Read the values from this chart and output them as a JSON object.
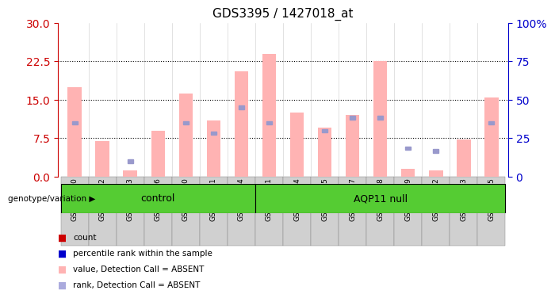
{
  "title": "GDS3395 / 1427018_at",
  "samples": [
    "GSM267980",
    "GSM267982",
    "GSM267983",
    "GSM267986",
    "GSM267990",
    "GSM267991",
    "GSM267994",
    "GSM267981",
    "GSM267984",
    "GSM267985",
    "GSM267987",
    "GSM267988",
    "GSM267989",
    "GSM267992",
    "GSM267993",
    "GSM267995"
  ],
  "pink_values": [
    17.5,
    7.0,
    1.2,
    9.0,
    16.2,
    11.0,
    20.5,
    24.0,
    12.5,
    9.5,
    12.0,
    22.5,
    1.5,
    1.2,
    7.2,
    15.5
  ],
  "blue_ranks_left": [
    10.5,
    null,
    3.0,
    null,
    10.5,
    8.5,
    13.5,
    10.5,
    null,
    9.0,
    11.5,
    11.5,
    5.5,
    5.0,
    null,
    10.5
  ],
  "n_control": 7,
  "n_aqp11": 9,
  "ylim_left": [
    0,
    30
  ],
  "ylim_right": [
    0,
    100
  ],
  "yticks_left": [
    0,
    7.5,
    15,
    22.5,
    30
  ],
  "yticks_right": [
    0,
    25,
    50,
    75,
    100
  ],
  "ytick_labels_right": [
    "0",
    "25",
    "50",
    "75",
    "100%"
  ],
  "left_color": "#cc0000",
  "right_color": "#0000cc",
  "bar_color_pink": "#ffb3b3",
  "bar_color_blue": "#9999cc",
  "control_label": "control",
  "aqp11_label": "AQP11 null",
  "group_bg_color": "#55cc33",
  "group_label": "genotype/variation",
  "legend_colors": [
    "#cc0000",
    "#0000cc",
    "#ffb3b3",
    "#aaaadd"
  ],
  "legend_labels": [
    "count",
    "percentile rank within the sample",
    "value, Detection Call = ABSENT",
    "rank, Detection Call = ABSENT"
  ],
  "hgrid_vals": [
    7.5,
    15.0,
    22.5
  ]
}
